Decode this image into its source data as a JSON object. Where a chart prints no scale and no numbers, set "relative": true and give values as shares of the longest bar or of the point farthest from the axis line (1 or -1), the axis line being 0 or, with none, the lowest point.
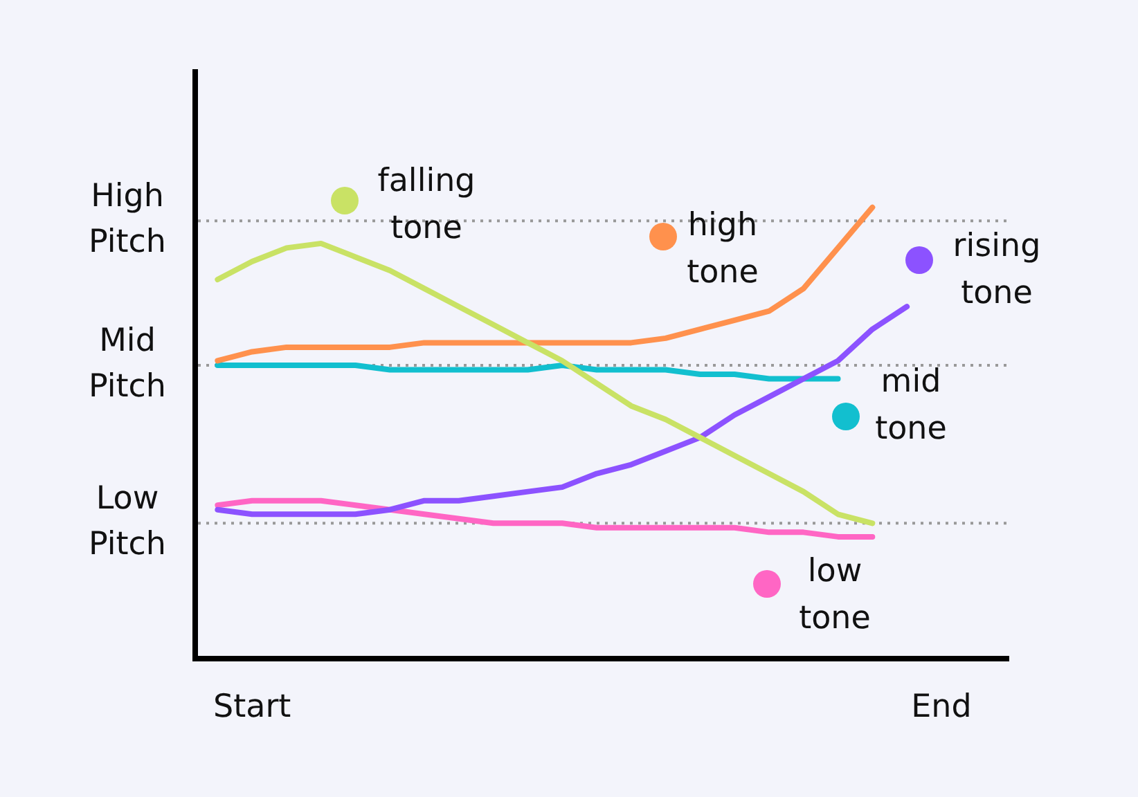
{
  "chart_data": {
    "type": "line",
    "relative": true,
    "marker": "none",
    "line_style": "solid",
    "legend": "right",
    "categories": [
      null,
      "Start",
      null,
      null,
      null,
      null,
      null,
      null,
      null,
      null,
      null,
      null,
      null,
      null,
      null,
      null,
      null,
      null,
      null,
      null,
      null,
      "End"
    ],
    "ref_lines": [
      {
        "axis": "y",
        "value": 0.97,
        "label": "High Pitch",
        "color": "#999999",
        "line_style": "dotted"
      },
      {
        "axis": "y",
        "value": 0.65,
        "label": "Mid Pitch",
        "color": "#999999",
        "line_style": "dotted"
      },
      {
        "axis": "y",
        "value": 0.3,
        "label": "Low Pitch",
        "color": "#999999",
        "line_style": "dotted"
      }
    ],
    "series": [
      {
        "name": "falling tone",
        "color": "#c9e265",
        "values": [
          0.84,
          0.88,
          0.91,
          0.92,
          0.89,
          0.86,
          0.82,
          0.78,
          0.74,
          0.7,
          0.66,
          0.61,
          0.56,
          0.53,
          0.49,
          0.45,
          0.41,
          0.37,
          0.32,
          0.3,
          null,
          null
        ]
      },
      {
        "name": "high tone",
        "color": "#ff914d",
        "values": [
          0.66,
          0.68,
          0.69,
          0.69,
          0.69,
          0.69,
          0.7,
          0.7,
          0.7,
          0.7,
          0.7,
          0.7,
          0.7,
          0.71,
          0.73,
          0.75,
          0.77,
          0.82,
          0.91,
          1,
          null,
          null
        ]
      },
      {
        "name": "rising tone",
        "color": "#8c52ff",
        "values": [
          0.33,
          0.32,
          0.32,
          0.32,
          0.32,
          0.33,
          0.35,
          0.35,
          0.36,
          0.37,
          0.38,
          0.41,
          0.43,
          0.46,
          0.49,
          0.54,
          0.58,
          0.62,
          0.66,
          0.73,
          0.78,
          null
        ]
      },
      {
        "name": "mid tone",
        "color": "#12bfcf",
        "values": [
          0.65,
          0.65,
          0.65,
          0.65,
          0.65,
          0.64,
          0.64,
          0.64,
          0.64,
          0.64,
          0.65,
          0.64,
          0.64,
          0.64,
          0.63,
          0.63,
          0.62,
          0.62,
          0.62,
          null,
          null,
          null
        ]
      },
      {
        "name": "low tone",
        "color": "#ff66c4",
        "values": [
          0.34,
          0.35,
          0.35,
          0.35,
          0.34,
          0.33,
          0.32,
          0.31,
          0.3,
          0.3,
          0.3,
          0.29,
          0.29,
          0.29,
          0.29,
          0.29,
          0.28,
          0.28,
          0.27,
          0.27,
          null,
          null
        ]
      }
    ]
  }
}
